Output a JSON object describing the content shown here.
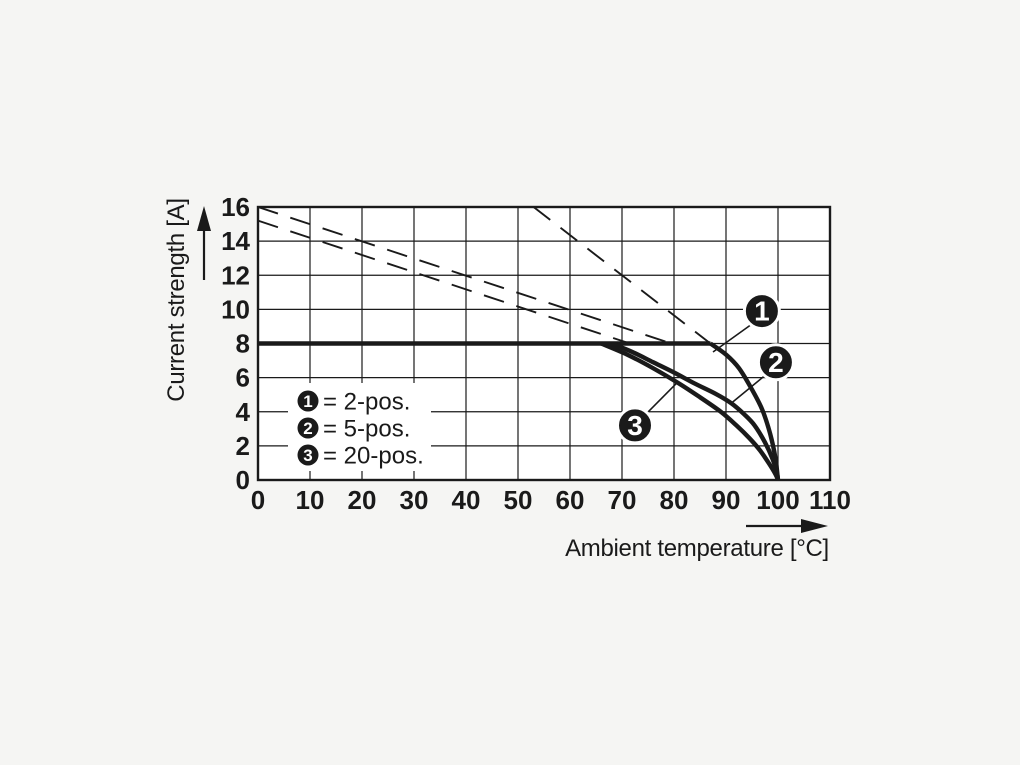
{
  "chart_data": {
    "type": "line",
    "title": "",
    "xlabel": "Ambient temperature [°C]",
    "ylabel": "Current strength [A]",
    "xlim": [
      0,
      110
    ],
    "ylim": [
      0,
      16
    ],
    "x_ticks": [
      0,
      10,
      20,
      30,
      40,
      50,
      60,
      70,
      80,
      90,
      100,
      110
    ],
    "y_ticks": [
      0,
      2,
      4,
      6,
      8,
      10,
      12,
      14,
      16
    ],
    "grid": true,
    "line_color": "#1a1a1a",
    "plot_background": "#ffffff",
    "series": [
      {
        "name": "rated-current-limit-8A",
        "style": "thick",
        "points": [
          [
            0,
            8
          ],
          [
            87,
            8
          ]
        ]
      },
      {
        "name": "curve-1-2-pos",
        "marker": "1",
        "style": "thick",
        "points": [
          [
            87,
            8
          ],
          [
            90,
            7.35
          ],
          [
            92.5,
            6.55
          ],
          [
            95,
            5.3
          ],
          [
            97,
            4.1
          ],
          [
            98.5,
            2.7
          ],
          [
            99.5,
            1.3
          ],
          [
            100,
            0
          ]
        ]
      },
      {
        "name": "curve-2-5-pos",
        "marker": "2",
        "style": "thick",
        "points": [
          [
            68,
            8
          ],
          [
            72,
            7.5
          ],
          [
            76,
            6.9
          ],
          [
            80,
            6.3
          ],
          [
            84,
            5.65
          ],
          [
            88,
            5.05
          ],
          [
            91,
            4.5
          ],
          [
            93.5,
            3.85
          ],
          [
            95.5,
            3.2
          ],
          [
            97.5,
            2.2
          ],
          [
            99,
            1.2
          ],
          [
            99.8,
            0.4
          ],
          [
            100,
            0
          ]
        ]
      },
      {
        "name": "curve-3-20-pos",
        "marker": "3",
        "style": "thick",
        "points": [
          [
            66,
            8
          ],
          [
            71,
            7.35
          ],
          [
            76,
            6.55
          ],
          [
            81,
            5.65
          ],
          [
            85,
            4.85
          ],
          [
            89,
            4.0
          ],
          [
            92,
            3.2
          ],
          [
            94.5,
            2.45
          ],
          [
            96.5,
            1.75
          ],
          [
            98.2,
            1.0
          ],
          [
            99.5,
            0.35
          ],
          [
            100,
            0
          ]
        ]
      },
      {
        "name": "derating-dashed-2-pos",
        "style": "dashed",
        "points": [
          [
            53,
            16
          ],
          [
            87,
            8
          ]
        ]
      },
      {
        "name": "derating-dashed-5-pos",
        "style": "dashed",
        "points": [
          [
            0,
            16
          ],
          [
            78.5,
            8.1
          ]
        ]
      },
      {
        "name": "derating-dashed-20-pos",
        "style": "dashed",
        "points": [
          [
            0,
            15.2
          ],
          [
            71.5,
            8
          ]
        ]
      }
    ],
    "legend": {
      "position": "inside-lower-left",
      "entries": [
        {
          "marker": "1",
          "label": "= 2-pos."
        },
        {
          "marker": "2",
          "label": "= 5-pos."
        },
        {
          "marker": "3",
          "label": "= 20-pos."
        }
      ]
    },
    "callouts": [
      {
        "marker": "1",
        "circle": [
          96.9,
          9.9
        ],
        "pointer_from": [
          94.8,
          9.1
        ],
        "pointer_to": [
          87.5,
          7.5
        ]
      },
      {
        "marker": "2",
        "circle": [
          99.6,
          6.9
        ],
        "pointer_from": [
          97.6,
          6.15
        ],
        "pointer_to": [
          91.0,
          4.5
        ]
      },
      {
        "marker": "3",
        "circle": [
          72.5,
          3.2
        ],
        "pointer_from": [
          74.9,
          3.95
        ],
        "pointer_to": [
          80.6,
          5.7
        ]
      }
    ]
  }
}
